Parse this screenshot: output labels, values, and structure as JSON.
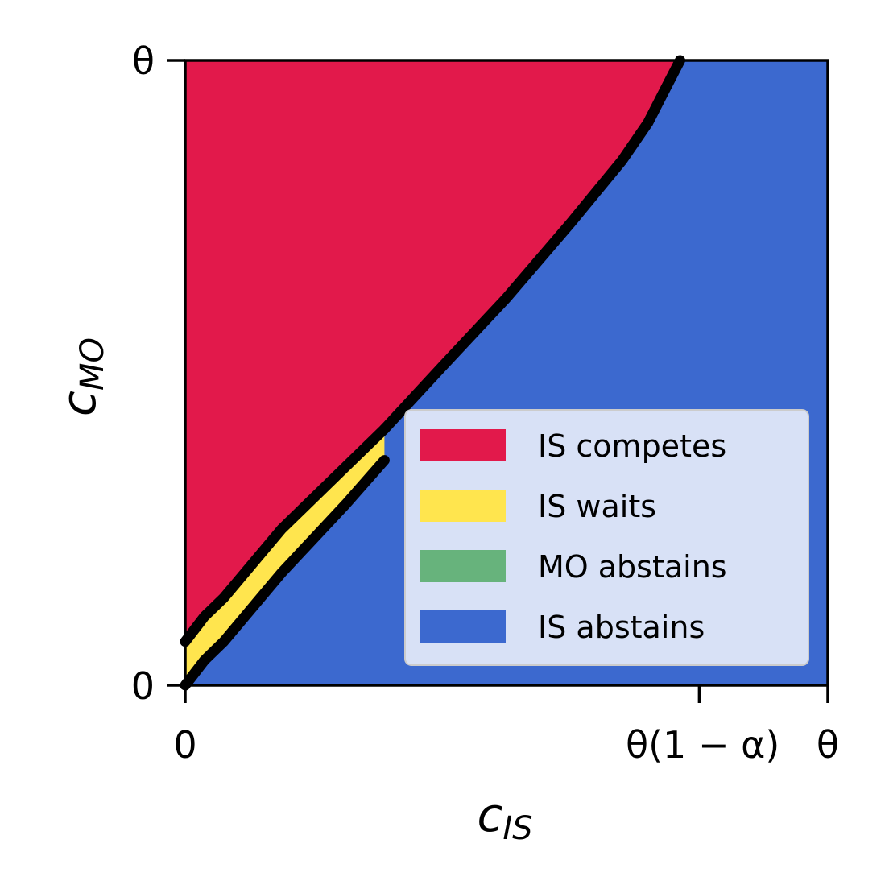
{
  "chart_data": {
    "type": "area",
    "xlabel": "c",
    "xlabel_sub": "IS",
    "ylabel": "c",
    "ylabel_sub": "MO",
    "xlim": [
      0,
      1
    ],
    "ylim": [
      0,
      1
    ],
    "x_ticks": [
      {
        "value": 0,
        "label": "0"
      },
      {
        "value": 0.8,
        "label": "θ(1 − α)"
      },
      {
        "value": 1,
        "label": "θ"
      }
    ],
    "y_ticks": [
      {
        "value": 0,
        "label": "0"
      },
      {
        "value": 1,
        "label": "θ"
      }
    ],
    "legend_position": "lower-right",
    "series": [
      {
        "name": "IS competes",
        "color": "#E2194B"
      },
      {
        "name": "IS waits",
        "color": "#FFE54E"
      },
      {
        "name": "MO abstains",
        "color": "#67B37C"
      },
      {
        "name": "IS abstains",
        "color": "#3C69CF"
      }
    ],
    "boundaries": {
      "compete_wait": {
        "x": [
          0,
          0.03,
          0.06,
          0.15,
          0.25,
          0.31
        ],
        "y": [
          0.07,
          0.11,
          0.14,
          0.25,
          0.35,
          0.41
        ]
      },
      "wait_abstain": {
        "x": [
          0,
          0.03,
          0.06,
          0.15,
          0.25,
          0.31
        ],
        "y": [
          0,
          0.04,
          0.07,
          0.18,
          0.29,
          0.36
        ]
      },
      "compete_abstain": {
        "x": [
          0.31,
          0.4,
          0.5,
          0.6,
          0.68,
          0.72,
          0.75,
          0.77
        ],
        "y": [
          0.41,
          0.51,
          0.62,
          0.74,
          0.84,
          0.9,
          0.96,
          1.0
        ]
      }
    }
  }
}
